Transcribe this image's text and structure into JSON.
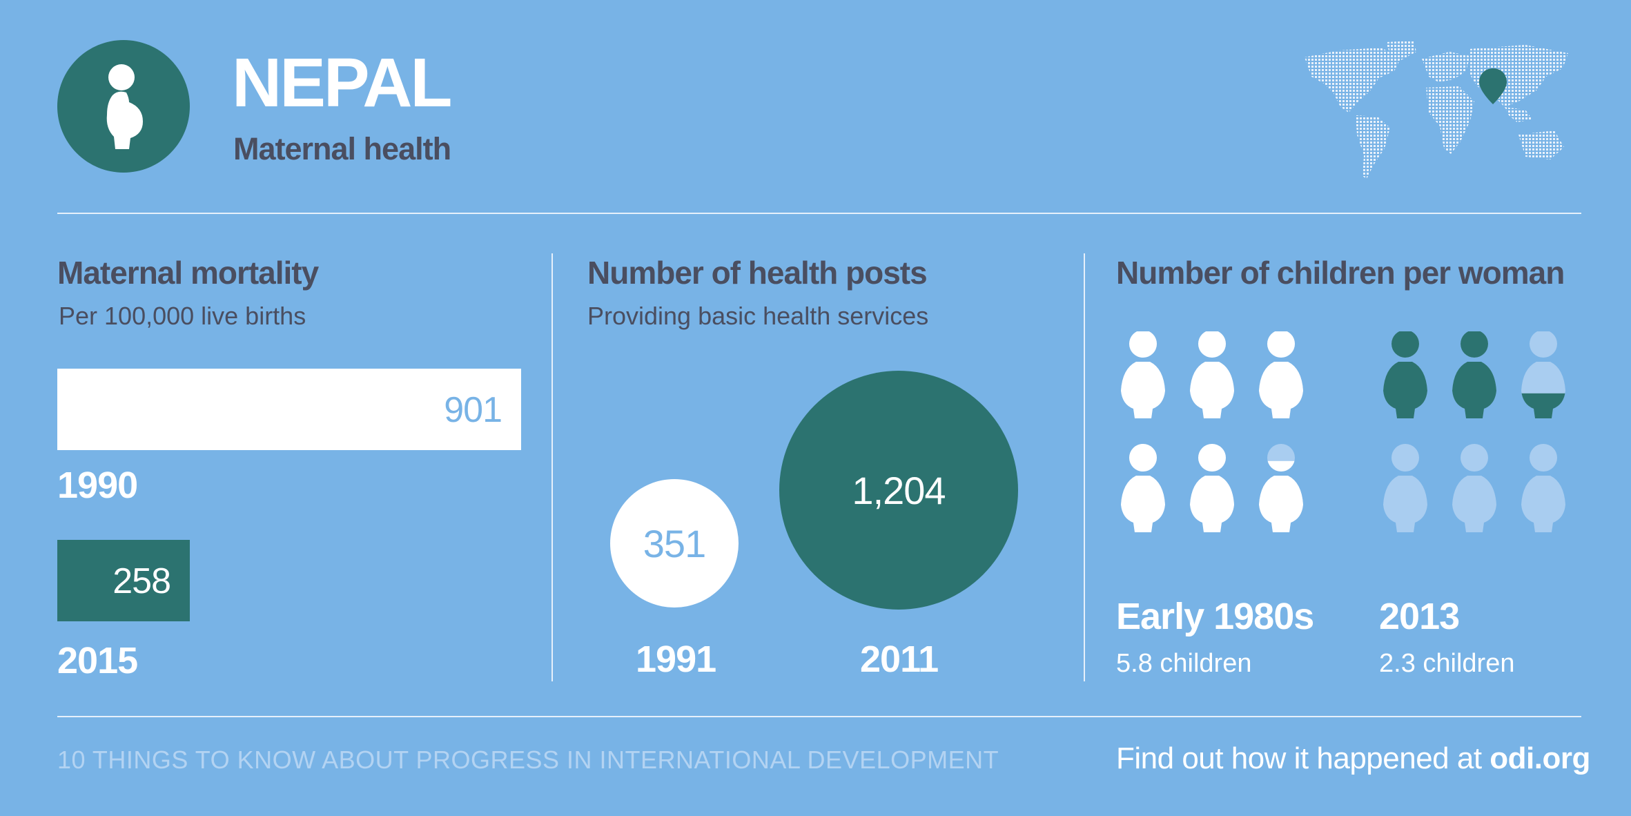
{
  "header": {
    "title": "NEPAL",
    "subtitle": "Maternal health",
    "icon": "pregnant-woman-icon",
    "accent": "#2c7370",
    "background": "#78b3e6"
  },
  "sections": {
    "mortality": {
      "title": "Maternal mortality",
      "subtitle": "Per 100,000 live births"
    },
    "health_posts": {
      "title": "Number of health posts",
      "subtitle": "Providing basic health services"
    },
    "children": {
      "title": "Number of children per woman",
      "periods": [
        {
          "label": "Early 1980s",
          "value_text": "5.8 children",
          "value": 5.8
        },
        {
          "label": "2013",
          "value_text": "2.3 children",
          "value": 2.3
        }
      ]
    }
  },
  "chart_data": [
    {
      "type": "bar",
      "orientation": "horizontal",
      "title": "Maternal mortality",
      "categories": [
        "1990",
        "2015"
      ],
      "values": [
        901,
        258
      ],
      "value_labels": [
        "901",
        "258"
      ],
      "colors": [
        "#ffffff",
        "#2c7370"
      ]
    },
    {
      "type": "bubble",
      "title": "Number of health posts",
      "categories": [
        "1991",
        "2011"
      ],
      "values": [
        351,
        1204
      ],
      "value_labels": [
        "351",
        "1,204"
      ],
      "colors": [
        "#ffffff",
        "#2c7370"
      ]
    }
  ],
  "footer": {
    "left": "10 THINGS TO KNOW ABOUT PROGRESS IN INTERNATIONAL DEVELOPMENT",
    "right_prefix": "Find out how it happened at ",
    "right_link": "odi.org"
  }
}
